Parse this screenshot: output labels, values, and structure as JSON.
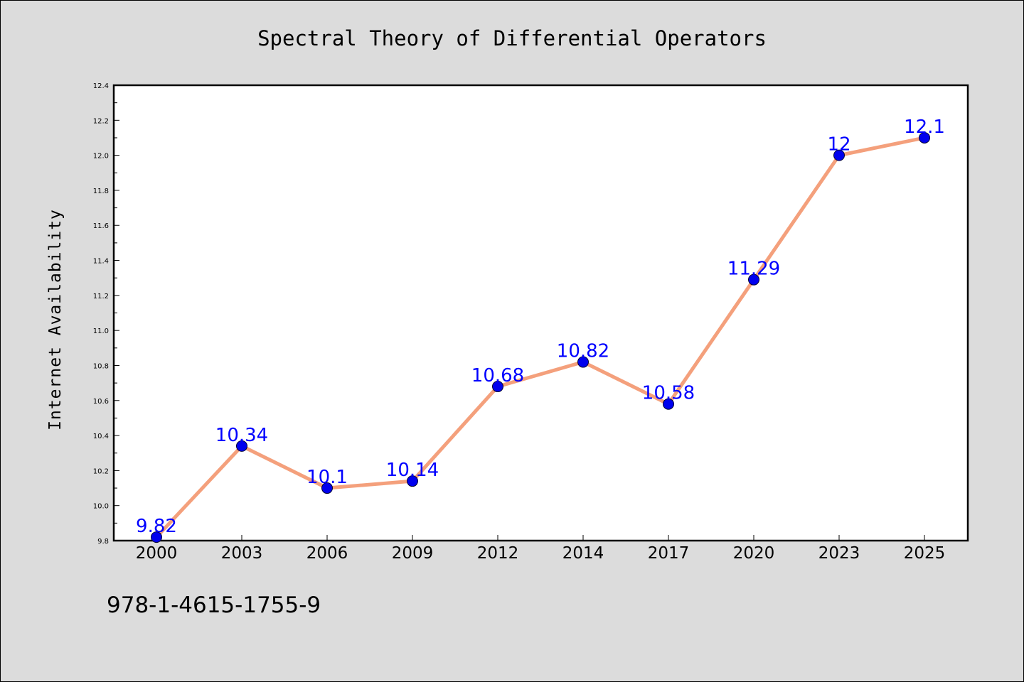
{
  "chart_data": {
    "type": "line",
    "title": "Spectral Theory of Differential Operators",
    "xlabel": "",
    "ylabel": "Internet Availability",
    "categories": [
      "2000",
      "2003",
      "2006",
      "2009",
      "2012",
      "2014",
      "2017",
      "2020",
      "2023",
      "2025"
    ],
    "values": [
      9.82,
      10.34,
      10.1,
      10.14,
      10.68,
      10.82,
      10.58,
      11.29,
      12,
      12.1
    ],
    "data_labels": [
      "9.82",
      "10.34",
      "10.1",
      "10.14",
      "10.68",
      "10.82",
      "10.58",
      "11.29",
      "12",
      "12.1"
    ],
    "ylim": [
      9.8,
      12.4
    ],
    "yticks": [
      "9.8",
      "10.0",
      "10.2",
      "10.4",
      "10.6",
      "10.8",
      "11.0",
      "11.2",
      "11.4",
      "11.6",
      "11.8",
      "12.0",
      "12.2",
      "12.4"
    ],
    "grid": false,
    "legend": "none",
    "colors": {
      "line": "#f4a07c",
      "marker": "#0000ee",
      "data_label": "#0000ff",
      "plot_background": "#ffffff",
      "page_background": "#dcdcdc"
    }
  },
  "footer": {
    "isbn": "978-1-4615-1755-9"
  }
}
